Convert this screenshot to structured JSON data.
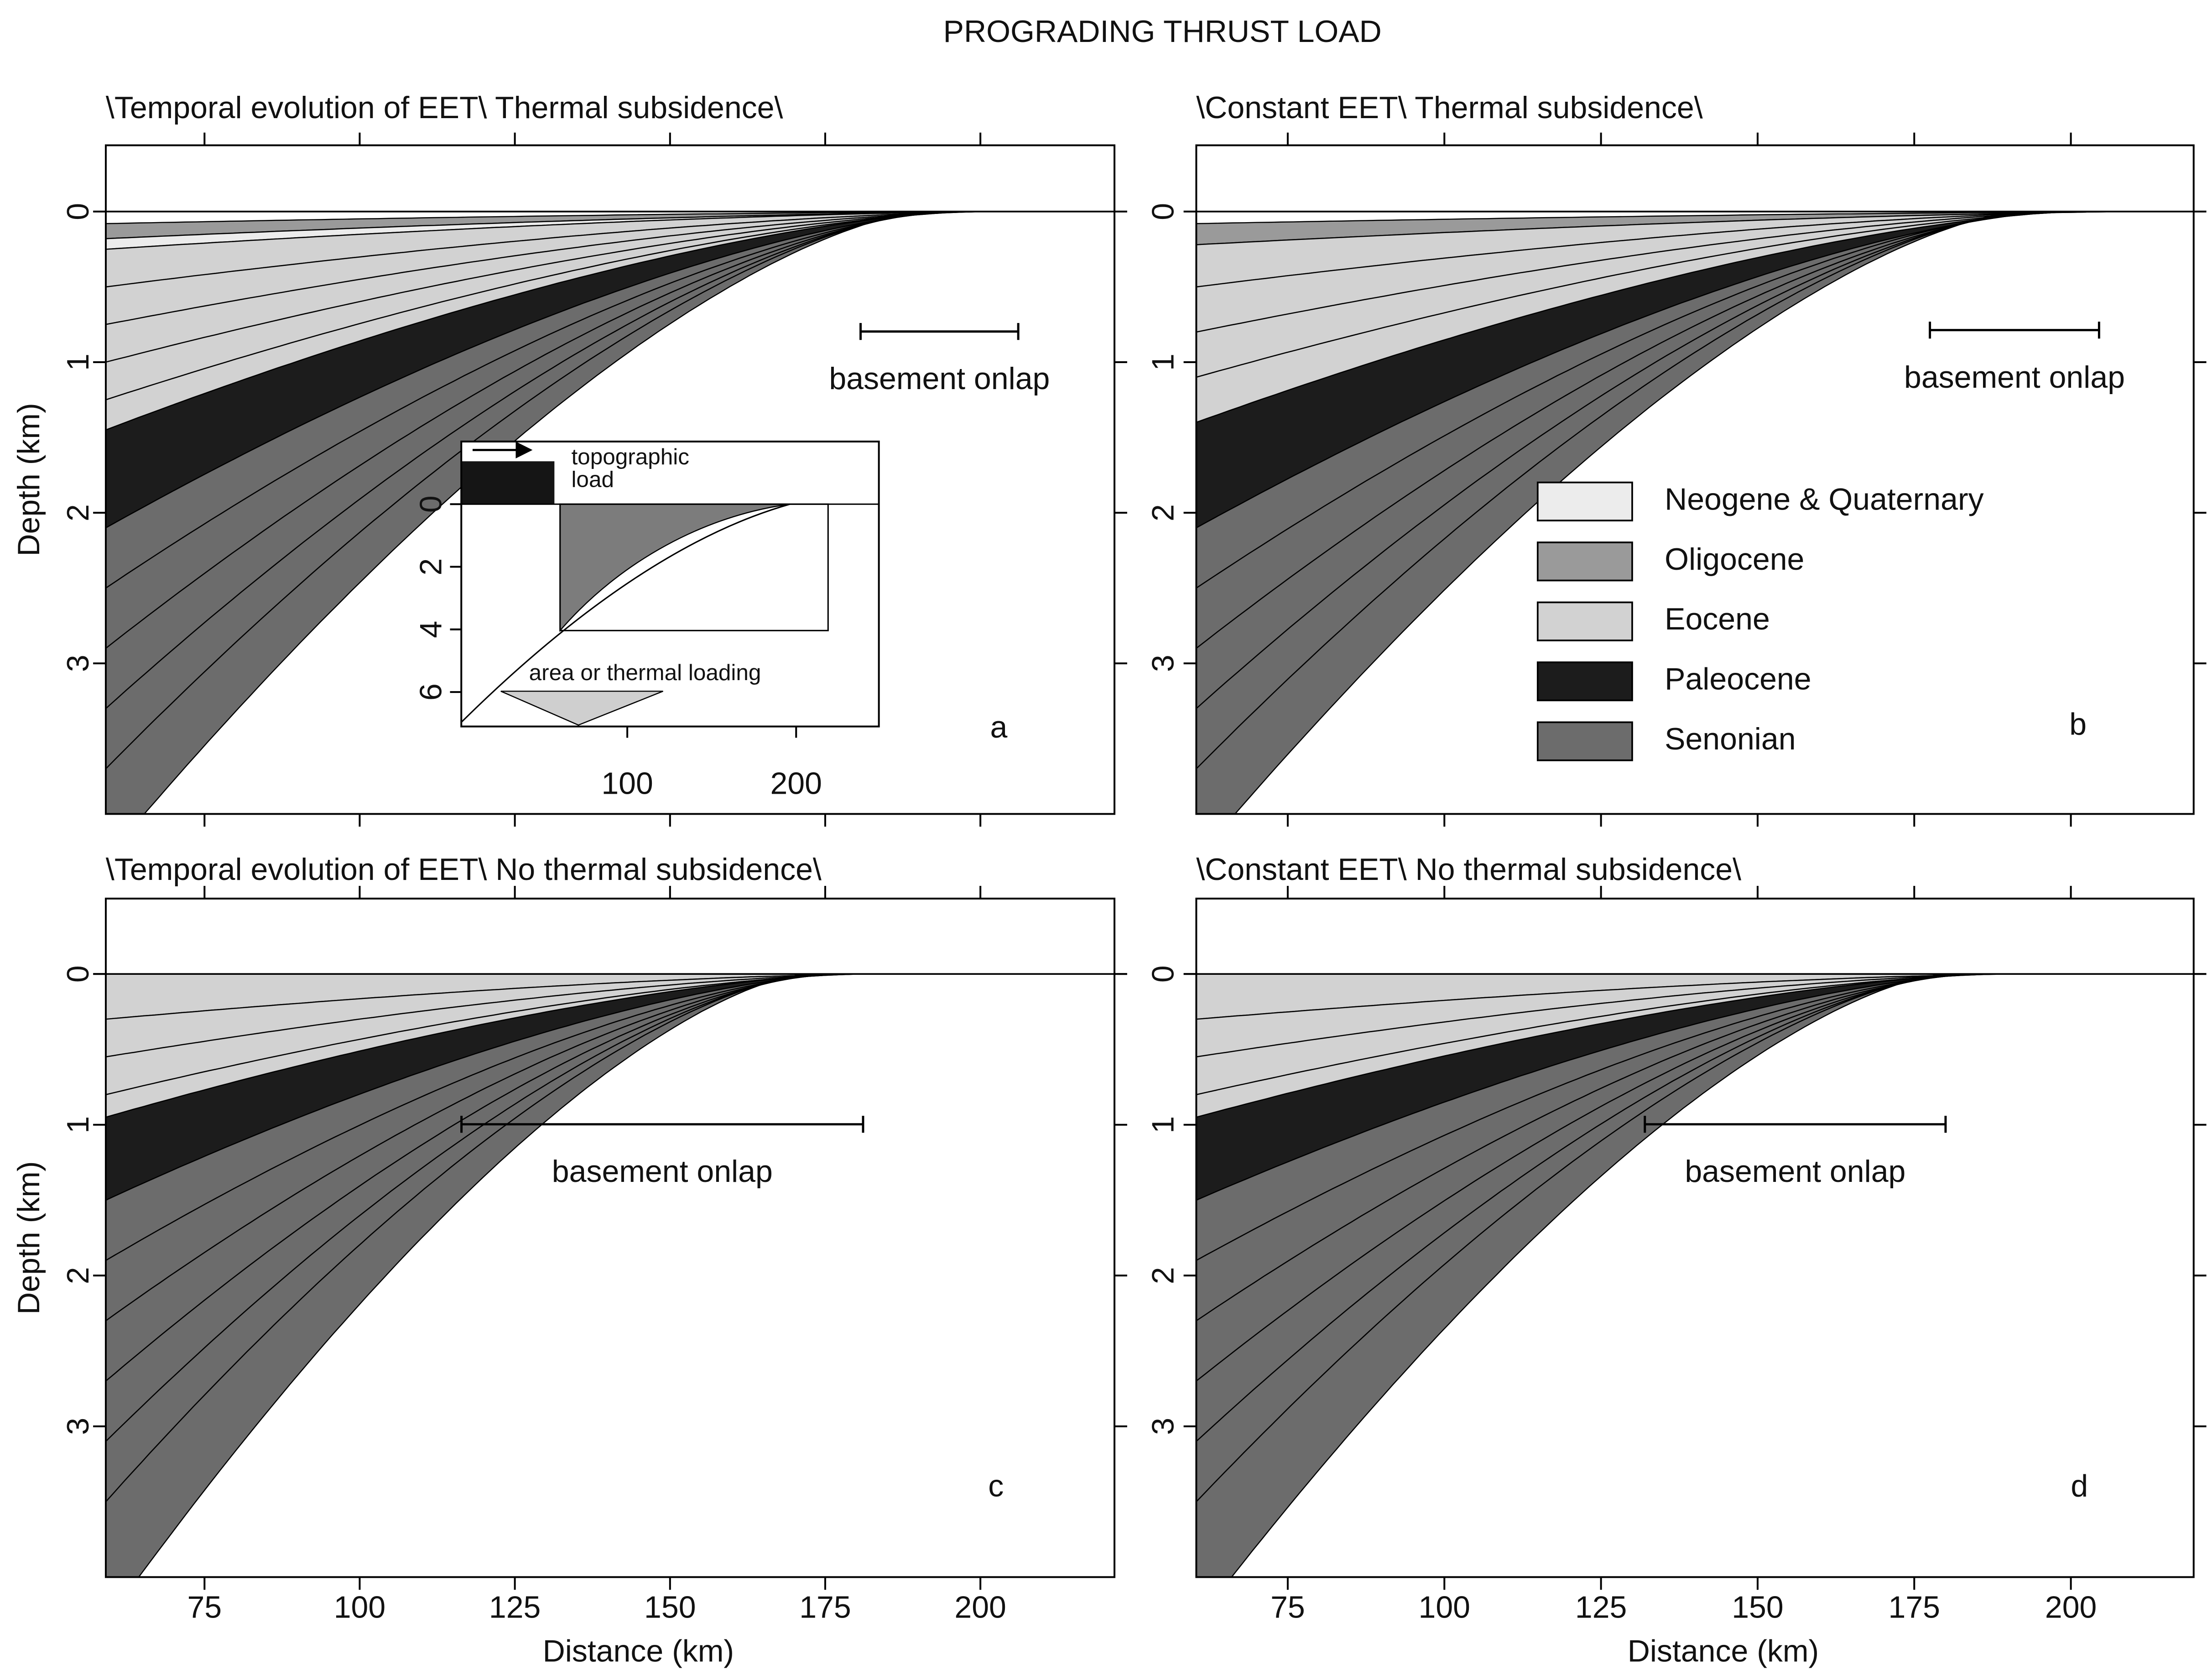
{
  "title": "PROGRADING THRUST LOAD",
  "legend": [
    {
      "name": "Neogene & Quaternary",
      "color": "#ececec"
    },
    {
      "name": "Oligocene",
      "color": "#9a9a9a"
    },
    {
      "name": "Eocene",
      "color": "#d2d2d2"
    },
    {
      "name": "Paleocene",
      "color": "#1c1c1c"
    },
    {
      "name": "Senonian",
      "color": "#6c6c6c"
    }
  ],
  "chart_data": [
    {
      "type": "area",
      "title": "\\Temporal evolution of EET\\ Thermal subsidence\\",
      "label": "a",
      "ylabel": "Depth (km)",
      "annotation": "basement onlap",
      "onlap": [
        180.7,
        206.1
      ],
      "xlim": [
        59.1,
        221.6
      ],
      "ylim": [
        -0.44,
        4.0
      ],
      "xticks": [
        75,
        100,
        125,
        150,
        175,
        200
      ],
      "yticks": [
        0,
        1,
        2,
        3
      ],
      "xtick_labels": false,
      "inset": {
        "xlim": [
          1.7,
          249
        ],
        "ylim": [
          -2.0,
          7.1
        ],
        "xticks": [
          100,
          200
        ],
        "yticks": [
          0,
          2,
          4,
          6
        ],
        "load_label": [
          "topographic",
          "load"
        ],
        "thermal_label": "area or thermal loading"
      }
    },
    {
      "type": "area",
      "title": "\\Constant EET\\ Thermal subsidence\\",
      "label": "b",
      "annotation": "basement onlap",
      "onlap": [
        177.5,
        204.5
      ],
      "xlim": [
        60.4,
        219.6
      ],
      "ylim": [
        -0.44,
        4.0
      ],
      "xticks": [
        75,
        100,
        125,
        150,
        175,
        200
      ],
      "yticks": [
        0,
        1,
        2,
        3
      ],
      "xtick_labels": false
    },
    {
      "type": "area",
      "title": "\\Temporal evolution of EET\\ No thermal subsidence\\",
      "label": "c",
      "ylabel": "Depth (km)",
      "xlabel": "Distance (km)",
      "annotation": "basement onlap",
      "onlap": [
        116.4,
        181.1
      ],
      "xlim": [
        59.1,
        221.6
      ],
      "ylim": [
        -0.5,
        4.0
      ],
      "xticks": [
        75,
        100,
        125,
        150,
        175,
        200
      ],
      "yticks": [
        0,
        1,
        2,
        3
      ],
      "xtick_labels": true
    },
    {
      "type": "area",
      "title": "\\Constant EET\\ No thermal subsidence\\",
      "label": "d",
      "xlabel": "Distance (km)",
      "annotation": "basement onlap",
      "onlap": [
        132,
        180
      ],
      "xlim": [
        60.4,
        219.6
      ],
      "ylim": [
        -0.5,
        4.0
      ],
      "xticks": [
        75,
        100,
        125,
        150,
        175,
        200
      ],
      "yticks": [
        0,
        1,
        2,
        3
      ],
      "xtick_labels": true
    }
  ]
}
